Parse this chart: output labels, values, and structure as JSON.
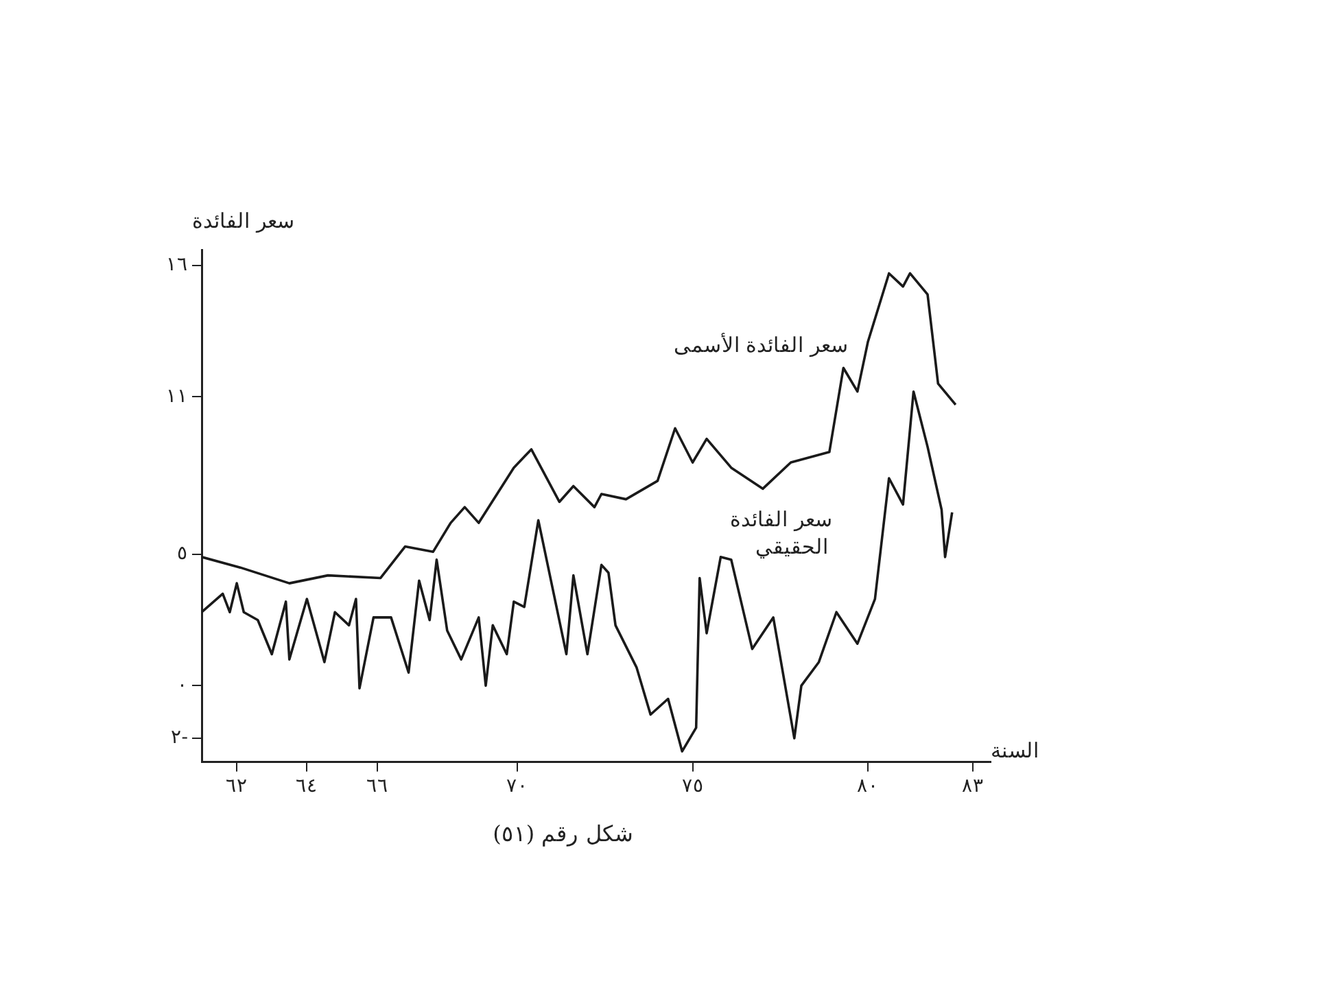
{
  "chart_data": {
    "type": "line",
    "title": "شكل رقم (٥١)",
    "ylabel": "سعر الفائدة",
    "xlabel": "السنة",
    "xlim": [
      61,
      83.5
    ],
    "ylim": [
      -2.9,
      16.6
    ],
    "xticks": [
      {
        "value": 62,
        "label": "٦٢"
      },
      {
        "value": 64,
        "label": "٦٤"
      },
      {
        "value": 66,
        "label": "٦٦"
      },
      {
        "value": 70,
        "label": "٧٠"
      },
      {
        "value": 75,
        "label": "٧٥"
      },
      {
        "value": 80,
        "label": "٨٠"
      },
      {
        "value": 83,
        "label": "٨٣"
      }
    ],
    "yticks": [
      {
        "value": 16,
        "label": "١٦"
      },
      {
        "value": 11,
        "label": "١١"
      },
      {
        "value": 5,
        "label": "٥"
      },
      {
        "value": 0,
        "label": "٠"
      },
      {
        "value": -2,
        "label": "٢-"
      }
    ],
    "grid": false,
    "legend": false,
    "marker": "none",
    "line_style": "solid",
    "series": [
      {
        "name": "سعر الفائدة الأسمى",
        "color": "#1a1a1a",
        "x": [
          61.0,
          62.1,
          63.5,
          64.6,
          66.1,
          66.8,
          67.6,
          68.1,
          68.5,
          68.9,
          69.9,
          70.4,
          71.2,
          71.6,
          72.2,
          72.4,
          73.1,
          74.0,
          74.5,
          75.0,
          75.4,
          76.1,
          77.0,
          77.8,
          78.9,
          79.3,
          79.7,
          80.0,
          80.6,
          81.0,
          81.2,
          81.7,
          82.0,
          82.5
        ],
        "values": [
          4.9,
          4.5,
          3.9,
          4.2,
          4.1,
          5.3,
          5.1,
          6.2,
          6.8,
          6.2,
          8.3,
          9.0,
          7.0,
          7.6,
          6.8,
          7.3,
          7.1,
          7.8,
          9.8,
          8.5,
          9.4,
          8.3,
          7.5,
          8.5,
          8.9,
          12.1,
          11.2,
          13.1,
          15.7,
          15.2,
          15.7,
          14.9,
          11.5,
          10.7
        ]
      },
      {
        "name": "سعر الفائدة الحقيقي",
        "color": "#1a1a1a",
        "x": [
          61.0,
          61.6,
          61.8,
          62.0,
          62.2,
          62.6,
          63.0,
          63.4,
          63.5,
          64.0,
          64.5,
          64.8,
          65.2,
          65.4,
          65.5,
          65.9,
          66.4,
          66.9,
          67.2,
          67.5,
          67.7,
          68.0,
          68.4,
          68.9,
          69.1,
          69.3,
          69.7,
          69.9,
          70.2,
          70.6,
          71.4,
          71.6,
          72.0,
          72.4,
          72.6,
          72.8,
          73.4,
          73.8,
          74.3,
          74.7,
          75.1,
          75.2,
          75.4,
          75.8,
          76.1,
          76.7,
          77.3,
          77.9,
          78.1,
          78.6,
          79.1,
          79.7,
          80.2,
          80.6,
          81.0,
          81.3,
          81.7,
          82.1,
          82.2,
          82.4
        ],
        "values": [
          2.8,
          3.5,
          2.8,
          3.9,
          2.8,
          2.5,
          1.2,
          3.2,
          1.0,
          3.3,
          0.9,
          2.8,
          2.3,
          3.3,
          -0.1,
          2.6,
          2.6,
          0.5,
          4.0,
          2.5,
          4.8,
          2.1,
          1.0,
          2.6,
          0.0,
          2.3,
          1.2,
          3.2,
          3.0,
          6.3,
          1.2,
          4.2,
          1.2,
          4.6,
          4.3,
          2.3,
          0.7,
          -1.1,
          -0.5,
          -2.5,
          -1.6,
          4.1,
          2.0,
          4.9,
          4.8,
          1.4,
          2.6,
          -2.0,
          0.0,
          0.9,
          2.8,
          1.6,
          3.3,
          7.9,
          6.9,
          11.2,
          9.1,
          6.7,
          4.9,
          6.6
        ]
      }
    ]
  }
}
